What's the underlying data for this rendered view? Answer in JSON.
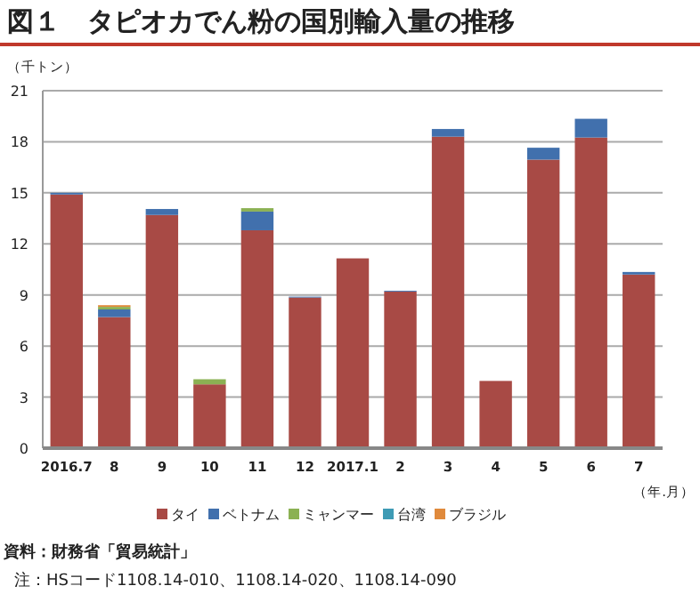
{
  "chart_data": {
    "type": "bar",
    "stacked": true,
    "title": "図１　タピオカでん粉の国別輸入量の推移",
    "ylabel": "（千トン）",
    "xlabel": "（年.月）",
    "categories": [
      "2016.7",
      "8",
      "9",
      "10",
      "11",
      "12",
      "2017.1",
      "2",
      "3",
      "4",
      "5",
      "6",
      "7"
    ],
    "series": [
      {
        "name": "タイ",
        "color": "#a84a45",
        "values": [
          14.9,
          7.7,
          13.7,
          3.75,
          12.8,
          8.85,
          11.15,
          9.2,
          18.3,
          3.95,
          16.95,
          18.25,
          10.2
        ]
      },
      {
        "name": "ベトナム",
        "color": "#4170ad",
        "values": [
          0.1,
          0.45,
          0.35,
          null,
          1.1,
          0.05,
          null,
          0.05,
          0.45,
          null,
          0.7,
          1.1,
          0.15
        ]
      },
      {
        "name": "ミャンマー",
        "color": "#8bb153",
        "values": [
          null,
          0.15,
          null,
          0.3,
          0.2,
          null,
          null,
          null,
          null,
          null,
          null,
          null,
          null
        ]
      },
      {
        "name": "台湾",
        "color": "#3e9bb5",
        "values": [
          null,
          null,
          null,
          null,
          null,
          null,
          null,
          null,
          null,
          null,
          null,
          null,
          null
        ]
      },
      {
        "name": "ブラジル",
        "color": "#e08a3c",
        "values": [
          null,
          0.1,
          null,
          null,
          null,
          null,
          null,
          null,
          null,
          null,
          null,
          null,
          null
        ]
      }
    ],
    "ylim": [
      0,
      21
    ],
    "yticks": [
      0,
      3,
      6,
      9,
      12,
      15,
      18,
      21
    ],
    "grid": "y",
    "legend": "bottom",
    "annotations": [
      "資料：財務省「貿易統計」",
      "注：HSコード1108.14-010、1108.14-020、1108.14-090"
    ]
  }
}
